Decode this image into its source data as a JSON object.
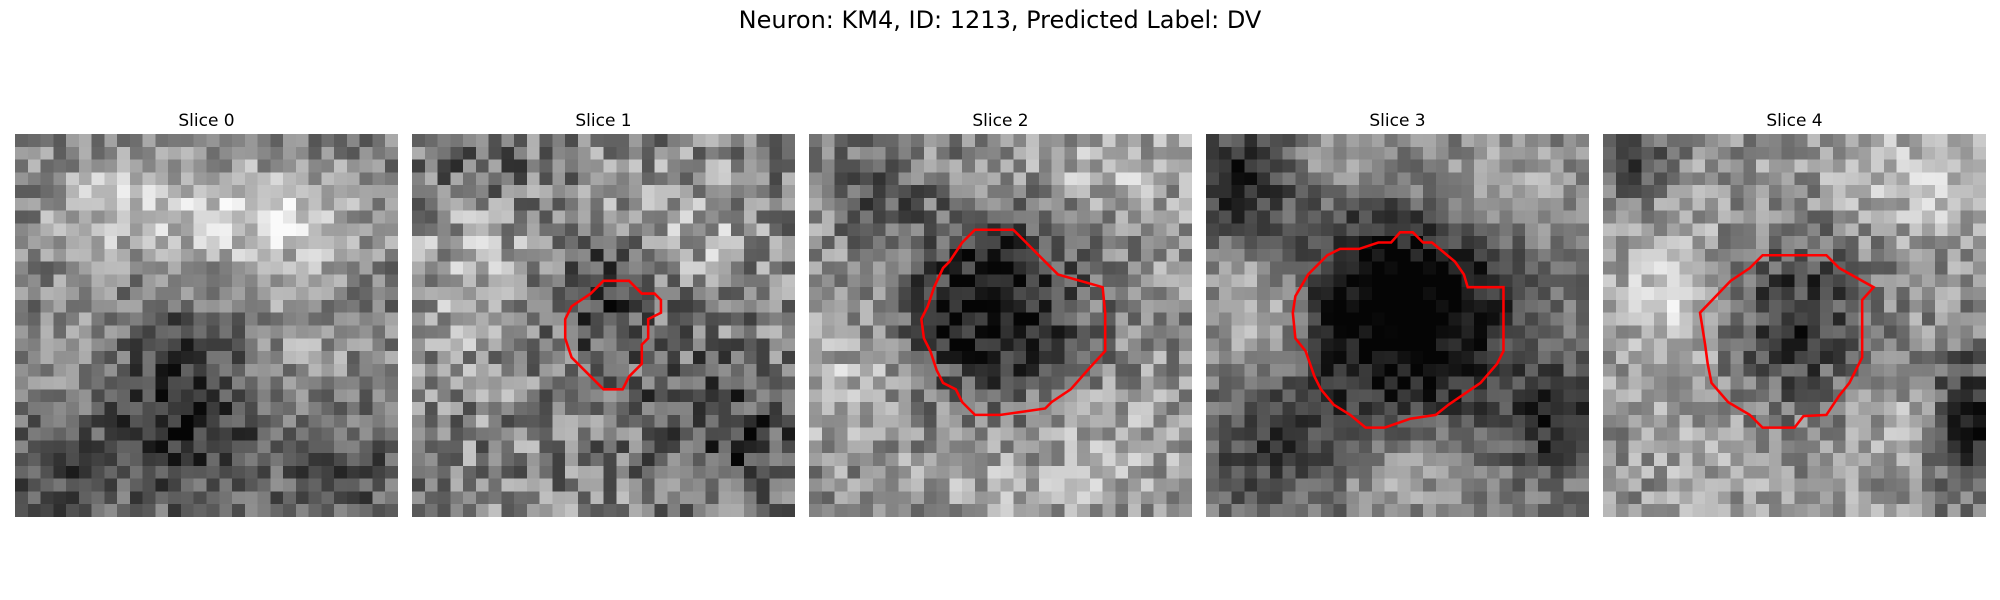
{
  "figure": {
    "title": "Neuron: KM4, ID: 1213, Predicted Label: DV"
  },
  "panels": [
    {
      "title": "Slice 0",
      "has_outline": false,
      "pattern": "diffuse-bright-top-dark-bottom"
    },
    {
      "title": "Slice 1",
      "has_outline": true,
      "pattern": "small-dark-blob-center"
    },
    {
      "title": "Slice 2",
      "has_outline": true,
      "pattern": "dark-round-soma-center"
    },
    {
      "title": "Slice 3",
      "has_outline": true,
      "pattern": "large-dark-round-soma-center"
    },
    {
      "title": "Slice 4",
      "has_outline": true,
      "pattern": "dark-blob-center-right"
    }
  ],
  "colors": {
    "outline": "#ff0000",
    "colormap": "gray"
  }
}
